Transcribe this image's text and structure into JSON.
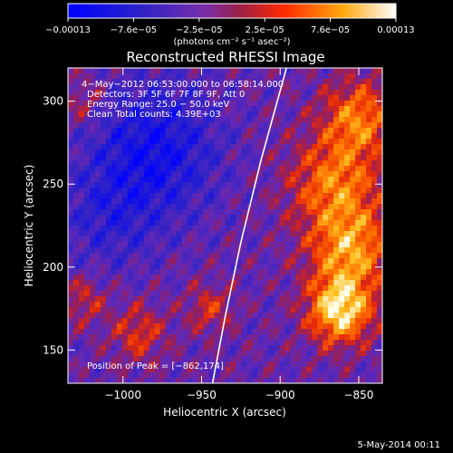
{
  "chart_data": {
    "type": "heatmap",
    "title": "Reconstructed RHESSI Image",
    "colorbar": {
      "tick_labels": [
        "−0.00013",
        "−7.6e−05",
        "−2.5e−05",
        "2.5e−05",
        "7.6e−05",
        "0.00013"
      ],
      "unit_label": "(photons cm⁻² s⁻¹ asec⁻²)",
      "range": [
        -0.00013,
        0.00013
      ],
      "colors": [
        "#0000ff",
        "#3a2ad0",
        "#7a30c8",
        "#9a1f4a",
        "#ff3a00",
        "#ffaa10",
        "#ffffff"
      ]
    },
    "xlabel": "Heliocentric X (arcsec)",
    "ylabel": "Heliocentric Y (arcsec)",
    "xlim": [
      -1035,
      -835
    ],
    "ylim": [
      130,
      320
    ],
    "xticks": [
      -1000,
      -950,
      -900,
      -850
    ],
    "xtick_labels": [
      "−1000",
      "−950",
      "−900",
      "−850"
    ],
    "yticks": [
      150,
      200,
      250,
      300
    ],
    "ytick_labels": [
      "150",
      "200",
      "250",
      "300"
    ],
    "annotations": [
      "4−May−2012 06:53:00.000 to 06:58:14.000",
      "Detectors: 3F 5F 6F 7F 8F 9F, Att 0",
      "Energy Range: 25.0 − 50.0 keV",
      "Clean     Total counts: 4.39E+03"
    ],
    "peak_label": "Position of Peak = [−862,174]",
    "peak": [
      -862,
      174
    ],
    "limb_curve": [
      [
        -943,
        130
      ],
      [
        -935,
        170
      ],
      [
        -925,
        215
      ],
      [
        -912,
        265
      ],
      [
        -896,
        320
      ]
    ],
    "grid": false
  },
  "footer": {
    "timestamp": "5-May-2014 00:11"
  }
}
